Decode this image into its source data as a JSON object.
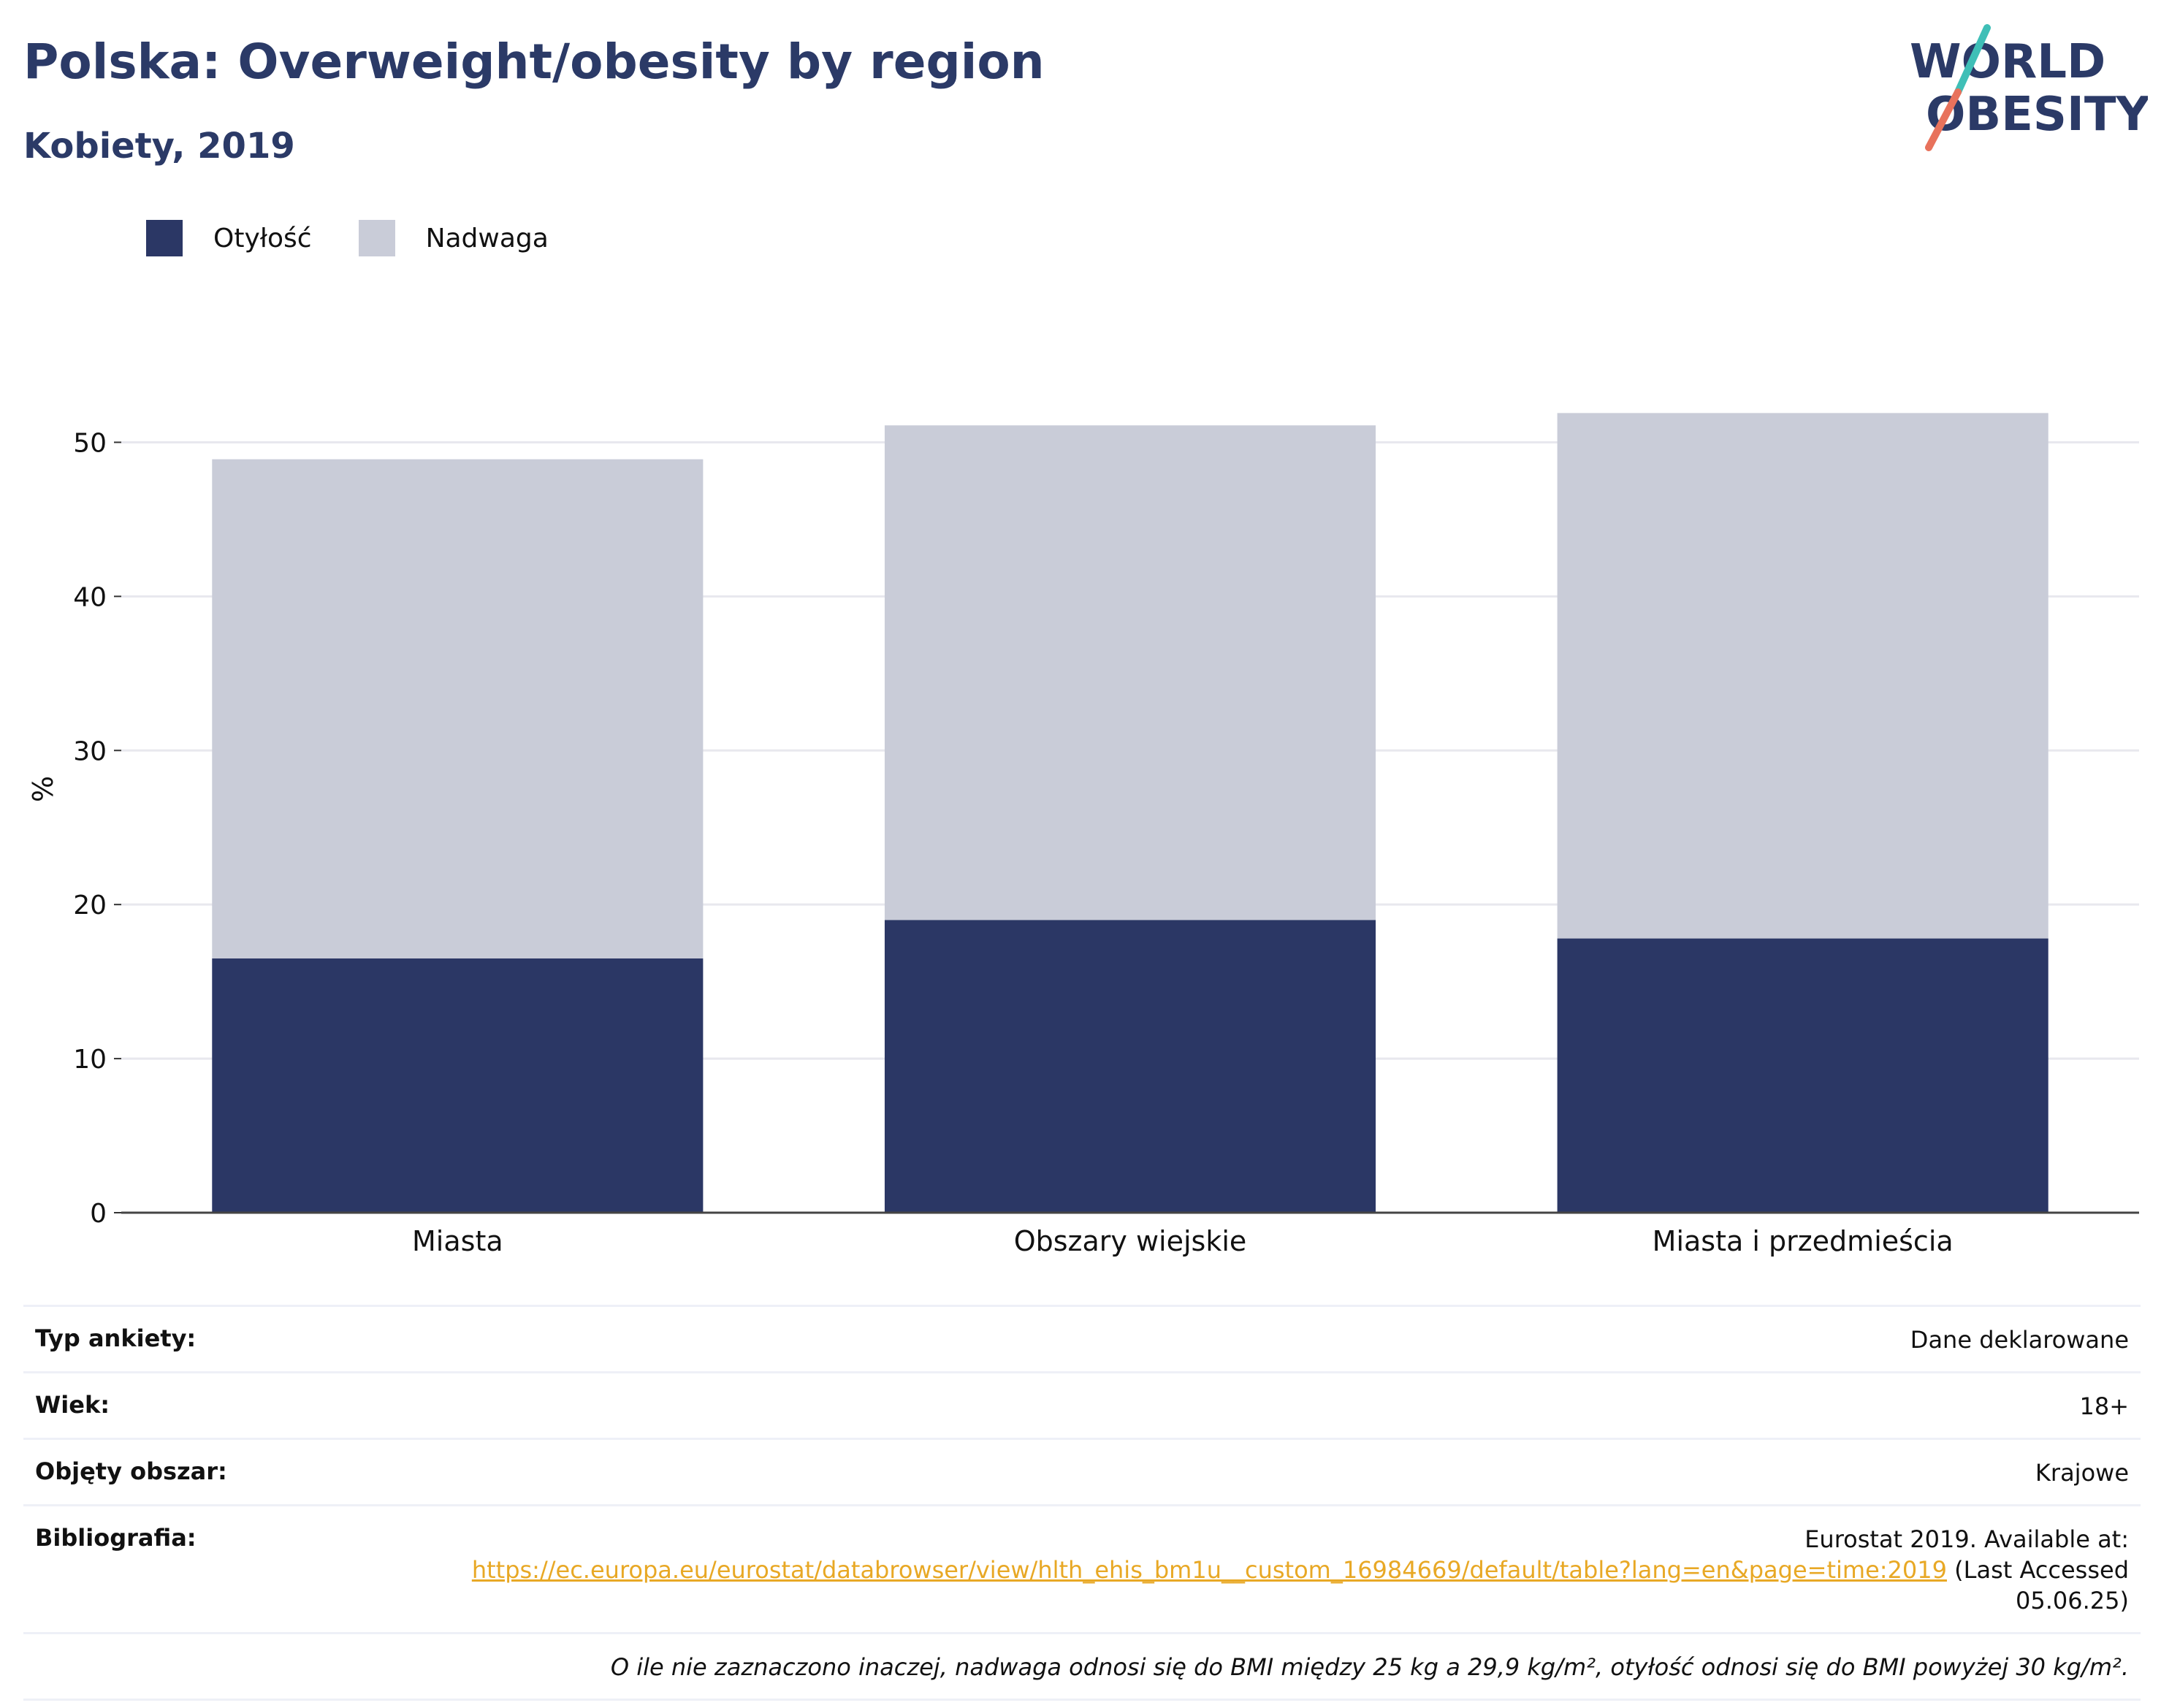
{
  "header": {
    "title": "Polska: Overweight/obesity by region",
    "subtitle": "Kobiety, 2019"
  },
  "logo": {
    "line1": "WORLD",
    "line2": "OBESITY",
    "colors": {
      "text": "#2b3a67",
      "accent_teal": "#3fbfb7",
      "accent_coral": "#e8725c"
    }
  },
  "legend": {
    "items": [
      {
        "label": "Otyłość",
        "color": "#2b3765"
      },
      {
        "label": "Nadwaga",
        "color": "#c9ccd8"
      }
    ]
  },
  "chart_data": {
    "type": "bar",
    "stacked": true,
    "categories": [
      "Miasta",
      "Obszary wiejskie",
      "Miasta i przedmieścia"
    ],
    "series": [
      {
        "name": "Otyłość",
        "color": "#2b3765",
        "values": [
          16.5,
          19.0,
          17.8
        ]
      },
      {
        "name": "Nadwaga",
        "color": "#c9ccd8",
        "values": [
          32.4,
          32.1,
          34.1
        ]
      }
    ],
    "ylabel": "%",
    "xlabel": "",
    "ylim": [
      0,
      55
    ],
    "yticks": [
      0,
      10,
      20,
      30,
      40,
      50
    ],
    "grid": true,
    "legend_position": "top-left"
  },
  "info": {
    "rows": [
      {
        "key": "Typ ankiety:",
        "value": "Dane deklarowane"
      },
      {
        "key": "Wiek:",
        "value": "18+"
      },
      {
        "key": "Objęty obszar:",
        "value": "Krajowe"
      }
    ],
    "bibliography": {
      "key": "Bibliografia:",
      "prefix": "Eurostat 2019. Available at:",
      "link": "https://ec.europa.eu/eurostat/databrowser/view/hlth_ehis_bm1u__custom_16984669/default/table?lang=en&page=time:2019",
      "suffix": "(Last Accessed 05.06.25)"
    },
    "note": "O ile nie zaznaczono inaczej, nadwaga odnosi się do BMI między 25 kg a 29,9 kg/m², otyłość odnosi się do BMI powyżej 30 kg/m²."
  }
}
